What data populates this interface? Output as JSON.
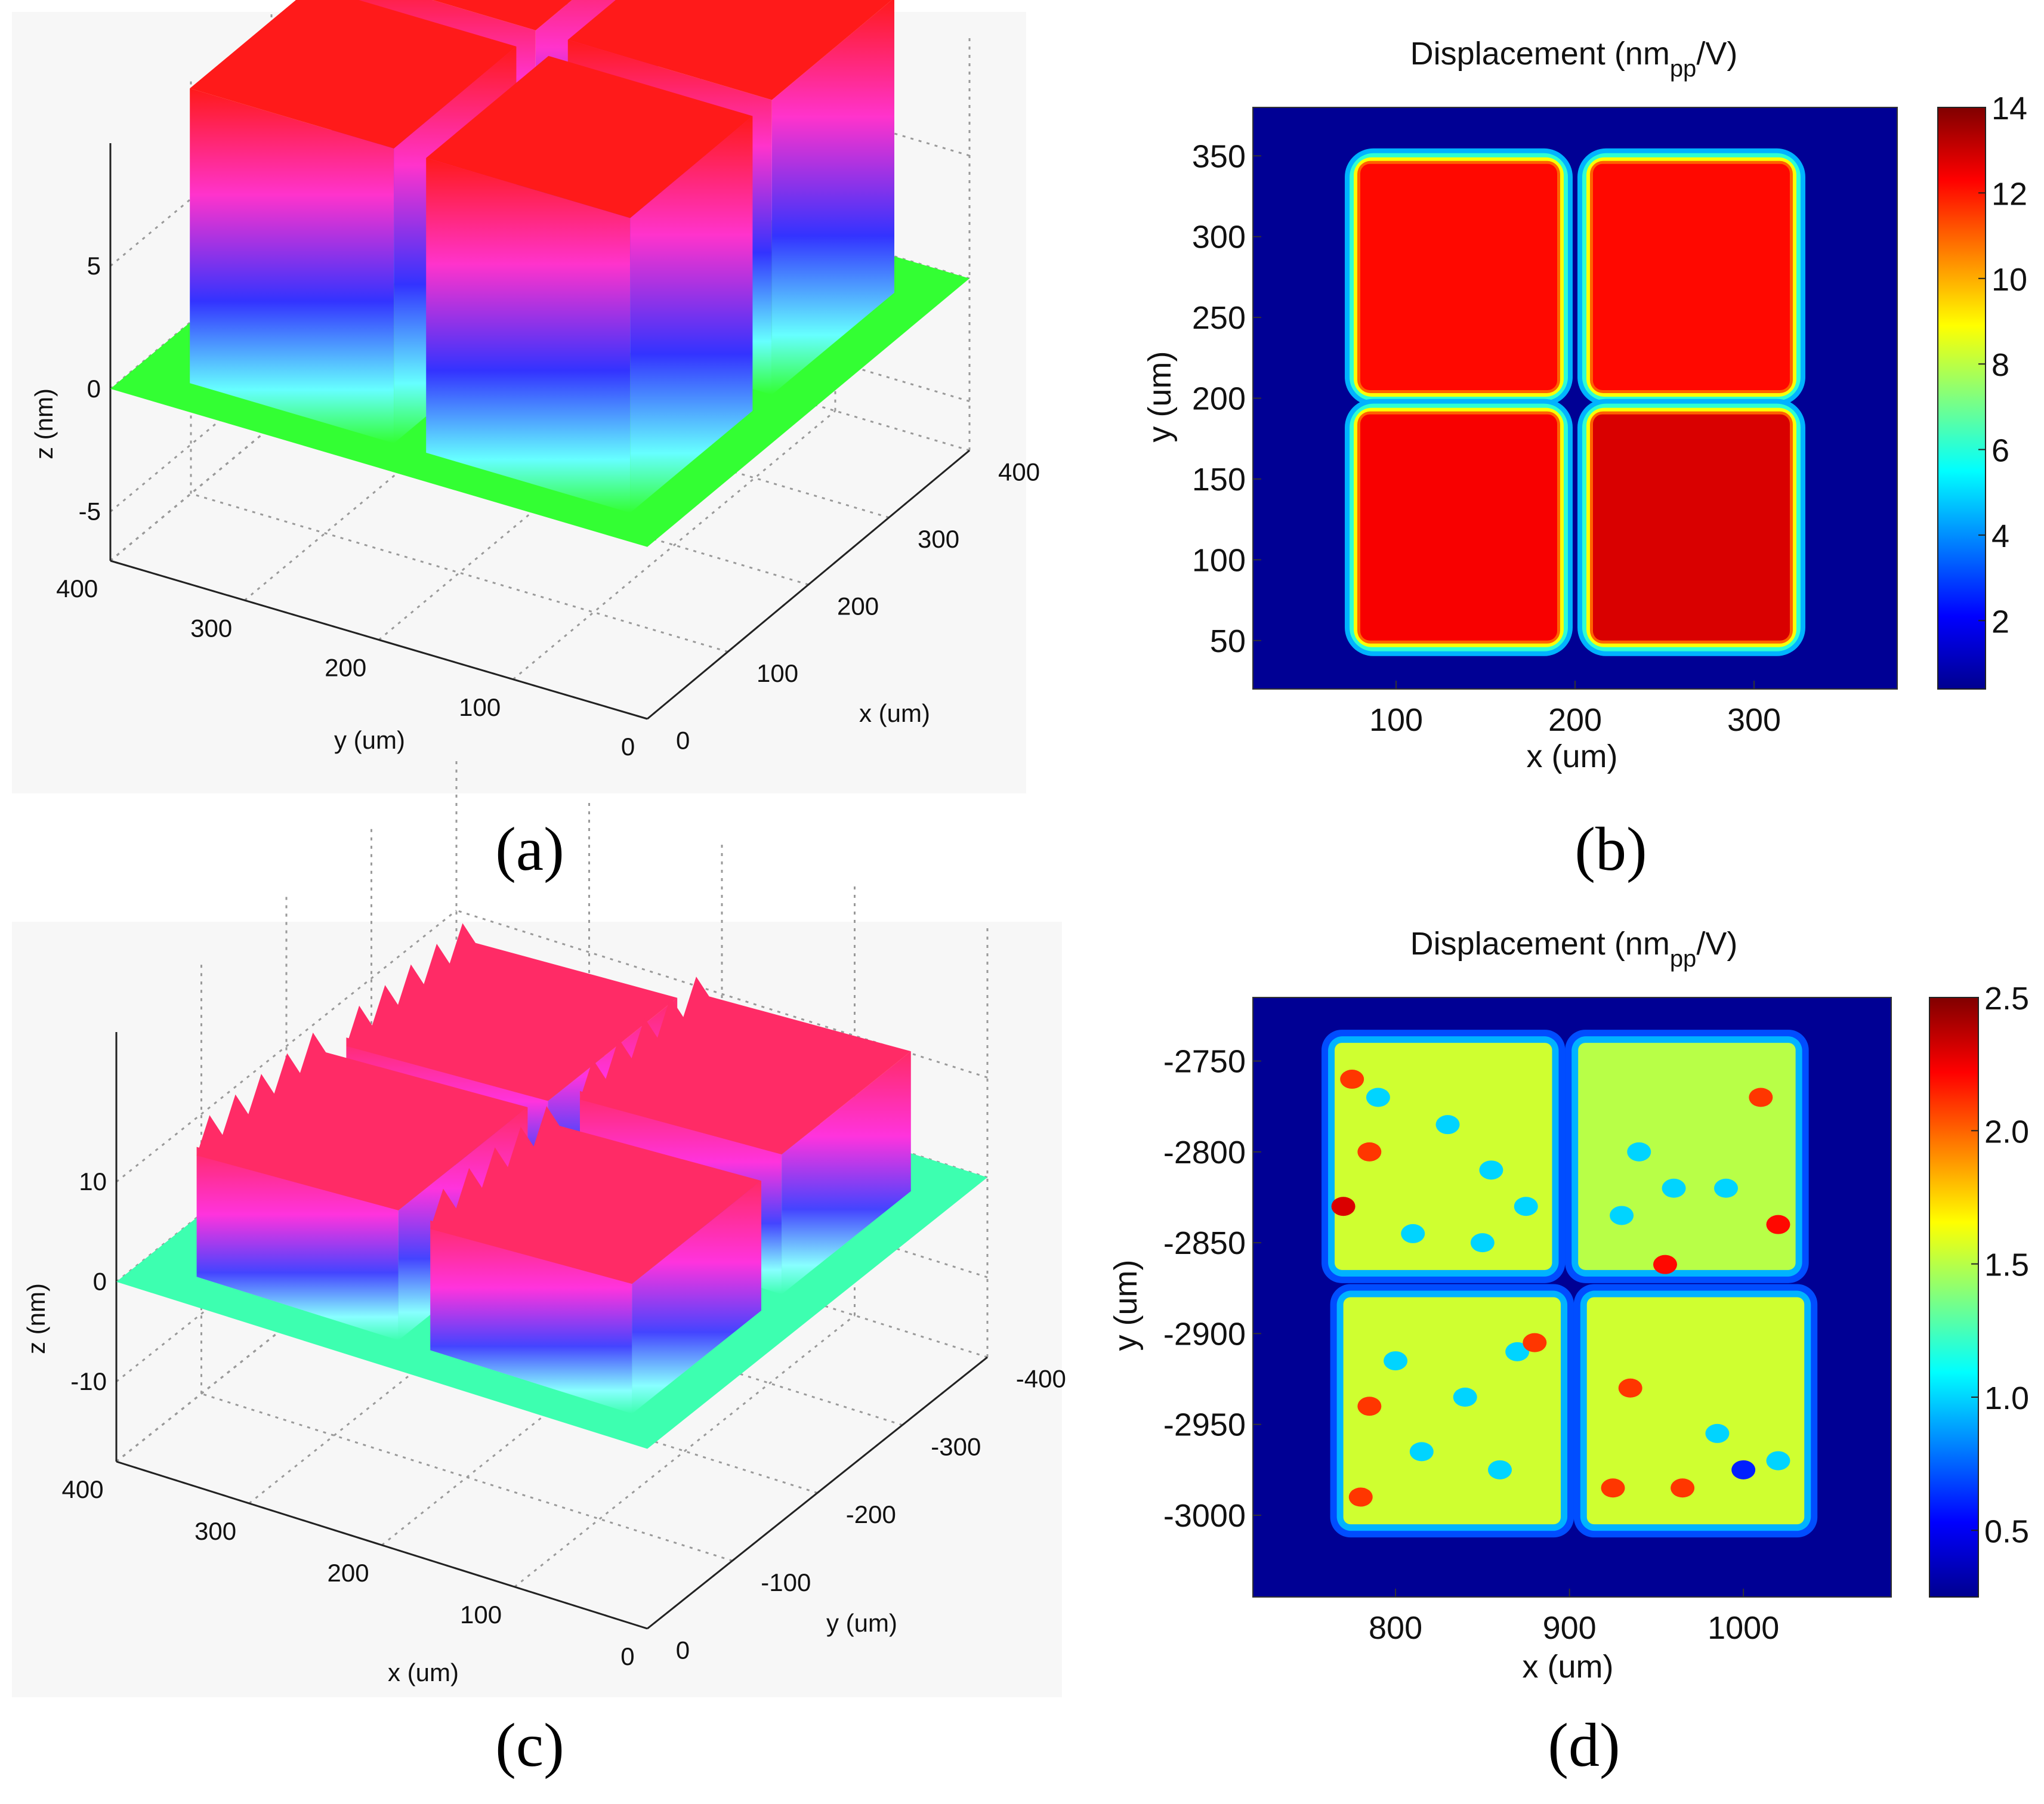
{
  "captions": [
    "(a)",
    "(b)",
    "(c)",
    "(d)"
  ],
  "chart_data": [
    {
      "type": "surface3d",
      "panel": "a",
      "xlabel": "x (um)",
      "ylabel": "y (um)",
      "zlabel": "z (nm)",
      "x_ticks": [
        "0",
        "100",
        "200",
        "300",
        "400"
      ],
      "y_ticks": [
        "0",
        "100",
        "200",
        "300",
        "400"
      ],
      "z_ticks": [
        "-5",
        "0",
        "5"
      ],
      "xlim": [
        0,
        400
      ],
      "ylim": [
        0,
        400
      ],
      "colors": {
        "base": "#33ff33",
        "top": "#ff1a1a",
        "mid": "#ff33cc",
        "low": "#3333ff",
        "edge": "#66ffff"
      },
      "series": [
        {
          "values": [
            [
              2,
              2,
              2,
              2
            ],
            [
              2,
              12,
              12,
              2
            ],
            [
              2,
              12,
              12,
              2
            ],
            [
              2,
              2,
              2,
              2
            ]
          ]
        }
      ]
    },
    {
      "type": "heatmap",
      "panel": "b",
      "title": "Displacement (nm",
      "title_sub": "pp",
      "title_end": "/V)",
      "xlabel": "x (um)",
      "ylabel": "y (um)",
      "x_ticks": [
        "100",
        "200",
        "300"
      ],
      "y_ticks": [
        "50",
        "100",
        "150",
        "200",
        "250",
        "300",
        "350"
      ],
      "x_tick_values": [
        100,
        200,
        300
      ],
      "y_tick_values": [
        50,
        100,
        150,
        200,
        250,
        300,
        350
      ],
      "xlim": [
        20,
        380
      ],
      "ylim": [
        20,
        380
      ],
      "colorbar_ticks": [
        "2",
        "4",
        "6",
        "8",
        "10",
        "12",
        "14"
      ],
      "colorbar_values": [
        2,
        4,
        6,
        8,
        10,
        12,
        14
      ],
      "clim": [
        0.4,
        14
      ],
      "pads": [
        {
          "x": [
            80,
            190
          ],
          "y": [
            205,
            345
          ],
          "value": 12.2
        },
        {
          "x": [
            210,
            320
          ],
          "y": [
            205,
            345
          ],
          "value": 12.2
        },
        {
          "x": [
            80,
            190
          ],
          "y": [
            50,
            190
          ],
          "value": 12.4
        },
        {
          "x": [
            210,
            320
          ],
          "y": [
            50,
            190
          ],
          "value": 12.8
        }
      ]
    },
    {
      "type": "surface3d",
      "panel": "c",
      "xlabel": "x (um)",
      "ylabel": "y (um)",
      "zlabel": "z (nm)",
      "x_ticks": [
        "0",
        "-100",
        "-200",
        "-300",
        "-400"
      ],
      "y_ticks": [
        "0",
        "100",
        "200",
        "300",
        "400"
      ],
      "z_ticks": [
        "-10",
        "0",
        "10"
      ],
      "xlim": [
        -400,
        0
      ],
      "ylim": [
        0,
        400
      ],
      "colors": {
        "base": "#3dffb0",
        "top": "#ff2b66",
        "mid": "#ff33dd",
        "low": "#4444ff",
        "edge": "#88ffff"
      },
      "series": [
        {
          "values": [
            [
              1,
              1,
              1,
              1
            ],
            [
              1,
              13,
              14,
              1
            ],
            [
              1,
              13,
              12,
              1
            ],
            [
              1,
              1,
              1,
              1
            ]
          ]
        }
      ]
    },
    {
      "type": "heatmap",
      "panel": "d",
      "title": "Displacement (nm",
      "title_sub": "pp",
      "title_end": "/V)",
      "xlabel": "x (um)",
      "ylabel": "y (um)",
      "x_ticks": [
        "800",
        "900",
        "1000"
      ],
      "y_ticks": [
        "-2750",
        "-2800",
        "-2850",
        "-2900",
        "-2950",
        "-3000"
      ],
      "x_tick_values": [
        800,
        900,
        1000
      ],
      "y_tick_values": [
        -2750,
        -2800,
        -2850,
        -2900,
        -2950,
        -3000
      ],
      "xlim": [
        718,
        1085
      ],
      "ylim": [
        -3045,
        -2715
      ],
      "colorbar_ticks": [
        "0.5",
        "1.0",
        "1.5",
        "2.0",
        "2.5"
      ],
      "colorbar_values": [
        0.5,
        1.0,
        1.5,
        2.0,
        2.5
      ],
      "clim": [
        0.25,
        2.5
      ],
      "pads": [
        {
          "x": [
            765,
            890
          ],
          "y": [
            -2865,
            -2740
          ],
          "value": 1.55
        },
        {
          "x": [
            905,
            1030
          ],
          "y": [
            -2865,
            -2740
          ],
          "value": 1.5
        },
        {
          "x": [
            770,
            895
          ],
          "y": [
            -3005,
            -2880
          ],
          "value": 1.55
        },
        {
          "x": [
            910,
            1035
          ],
          "y": [
            -3005,
            -2880
          ],
          "value": 1.55
        }
      ]
    }
  ]
}
